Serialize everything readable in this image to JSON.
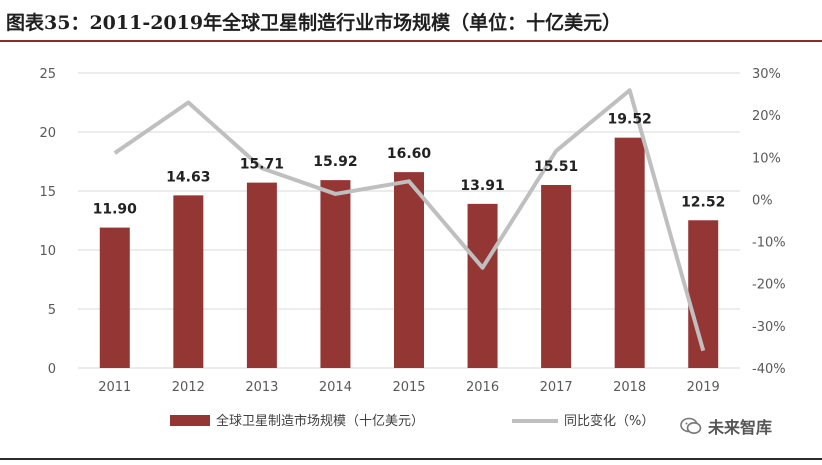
{
  "figure": {
    "title": "图表35：2011-2019年全球卫星制造行业市场规模（单位：十亿美元）",
    "watermark": "未来智库"
  },
  "colors": {
    "bar": "#943634",
    "line": "#bfbfbf",
    "grid": "#d9d9d9",
    "axis_text": "#595959",
    "title_rule": "#8b2a2a"
  },
  "chart_data": {
    "type": "bar",
    "categories": [
      "2011",
      "2012",
      "2013",
      "2014",
      "2015",
      "2016",
      "2017",
      "2018",
      "2019"
    ],
    "series": [
      {
        "name": "全球卫星制造市场规模（十亿美元）",
        "type": "bar",
        "axis": "left",
        "values": [
          11.9,
          14.63,
          15.71,
          15.92,
          16.6,
          13.91,
          15.51,
          19.52,
          12.52
        ],
        "labels": [
          "11.90",
          "14.63",
          "15.71",
          "15.92",
          "16.60",
          "13.91",
          "15.51",
          "19.52",
          "12.52"
        ]
      },
      {
        "name": "同比变化（%）",
        "type": "line",
        "axis": "right",
        "values": [
          11,
          23,
          7.4,
          1.3,
          4.3,
          -16.2,
          11.5,
          25.9,
          -35.9
        ]
      }
    ],
    "y_left": {
      "min": 0,
      "max": 25,
      "ticks": [
        0,
        5,
        10,
        15,
        20,
        25
      ],
      "tick_labels": [
        "0",
        "5",
        "10",
        "15",
        "20",
        "25"
      ]
    },
    "y_right": {
      "min": -40,
      "max": 30,
      "ticks": [
        -40,
        -30,
        -20,
        -10,
        0,
        10,
        20,
        30
      ],
      "tick_labels": [
        "-40%",
        "-30%",
        "-20%",
        "-10%",
        "0%",
        "10%",
        "20%",
        "30%"
      ]
    },
    "grid": true,
    "legend_position": "bottom"
  }
}
